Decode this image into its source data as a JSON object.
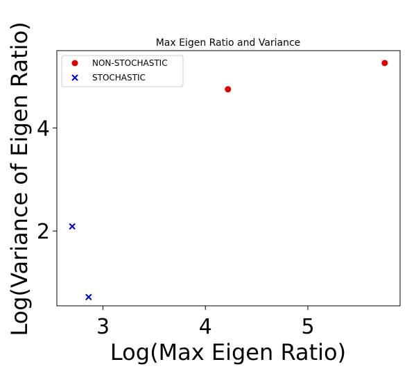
{
  "chart_data": {
    "type": "scatter",
    "title": "Max Eigen Ratio and  Variance",
    "xlabel": "Log(Max Eigen Ratio)",
    "ylabel": "Log(Variance of Eigen Ratio)",
    "xlim": [
      2.55,
      5.9
    ],
    "ylim": [
      0.55,
      5.5
    ],
    "xticks": [
      3,
      4,
      5
    ],
    "yticks": [
      2,
      4
    ],
    "grid": false,
    "legend_position": "top-left",
    "series": [
      {
        "name": "NON-STOCHASTIC",
        "marker": "circle",
        "color": "#e00000",
        "points": [
          {
            "x": 4.22,
            "y": 4.75
          },
          {
            "x": 5.75,
            "y": 5.26
          }
        ]
      },
      {
        "name": "STOCHASTIC",
        "marker": "x",
        "color": "#0000cc",
        "points": [
          {
            "x": 2.7,
            "y": 2.09
          },
          {
            "x": 2.86,
            "y": 0.72
          }
        ]
      }
    ]
  }
}
